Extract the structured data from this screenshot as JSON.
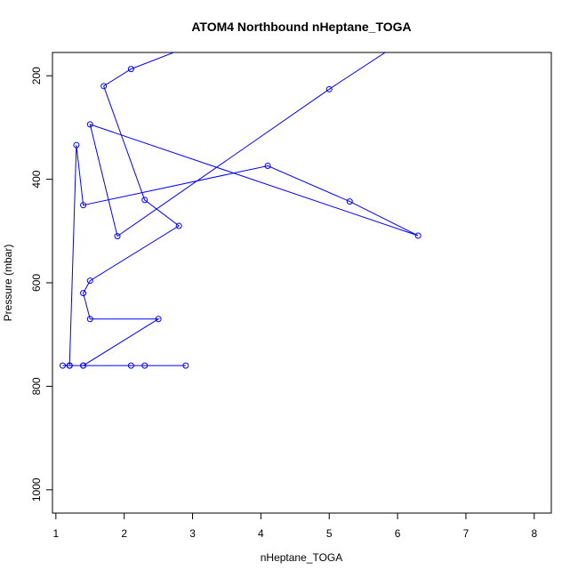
{
  "chart_data": {
    "type": "line",
    "title": "ATOM4 Northbound nHeptane_TOGA",
    "xlabel": "nHeptane_TOGA",
    "ylabel": "Pressure (mbar)",
    "xlim": [
      0.95,
      8.25
    ],
    "ylim": [
      1045,
      155
    ],
    "y_reversed": true,
    "x_ticks": [
      1,
      2,
      3,
      4,
      5,
      6,
      7,
      8
    ],
    "y_ticks": [
      200,
      400,
      600,
      800,
      1000
    ],
    "series": [
      {
        "color": "#0000ff",
        "marker": "open-circle",
        "points": [
          {
            "x": 2.9,
            "y": 760
          },
          {
            "x": 2.3,
            "y": 760
          },
          {
            "x": 2.1,
            "y": 760
          },
          {
            "x": 1.4,
            "y": 760
          },
          {
            "x": 1.2,
            "y": 760
          },
          {
            "x": 1.1,
            "y": 760
          },
          {
            "x": 1.2,
            "y": 760
          },
          {
            "x": 1.4,
            "y": 760
          },
          {
            "x": 2.5,
            "y": 670
          },
          {
            "x": 1.5,
            "y": 670
          },
          {
            "x": 1.4,
            "y": 620
          },
          {
            "x": 1.5,
            "y": 596
          },
          {
            "x": 2.8,
            "y": 490
          },
          {
            "x": 2.3,
            "y": 440
          },
          {
            "x": 1.7,
            "y": 220
          },
          {
            "x": 2.1,
            "y": 187
          },
          {
            "x": 3.8,
            "y": 100
          }
        ],
        "points_b": [
          {
            "x": 1.2,
            "y": 760
          },
          {
            "x": 1.3,
            "y": 334
          },
          {
            "x": 1.4,
            "y": 450
          },
          {
            "x": 4.1,
            "y": 374
          },
          {
            "x": 5.3,
            "y": 443
          },
          {
            "x": 6.3,
            "y": 509
          },
          {
            "x": 1.5,
            "y": 294
          },
          {
            "x": 1.9,
            "y": 510
          },
          {
            "x": 5.0,
            "y": 226
          },
          {
            "x": 6.8,
            "y": 70
          }
        ]
      }
    ]
  }
}
